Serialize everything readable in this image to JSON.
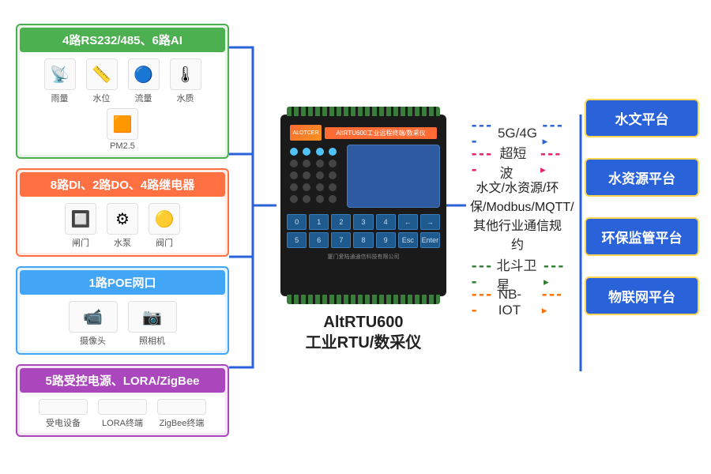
{
  "groups": [
    {
      "title": "4路RS232/485、6路AI",
      "border_color": "#4caf50",
      "header_bg": "#4caf50",
      "items": [
        {
          "label": "雨量",
          "glyph": "📡"
        },
        {
          "label": "水位",
          "glyph": "📏"
        },
        {
          "label": "流量",
          "glyph": "🔵"
        },
        {
          "label": "水质",
          "glyph": "🌡"
        },
        {
          "label": "PM2.5",
          "glyph": "🟧"
        }
      ]
    },
    {
      "title": "8路DI、2路DO、4路继电器",
      "border_color": "#ff7043",
      "header_bg": "#ff7043",
      "items": [
        {
          "label": "闸门",
          "glyph": "🔲"
        },
        {
          "label": "水泵",
          "glyph": "⚙"
        },
        {
          "label": "阀门",
          "glyph": "🟡"
        }
      ]
    },
    {
      "title": "1路POE网口",
      "border_color": "#42a5f5",
      "header_bg": "#42a5f5",
      "items": [
        {
          "label": "摄像头",
          "glyph": "📹",
          "wide": true
        },
        {
          "label": "照相机",
          "glyph": "📷",
          "wide": true
        }
      ]
    },
    {
      "title": "5路受控电源、LORA/ZigBee",
      "border_color": "#ab47bc",
      "header_bg": "#ab47bc",
      "items": [
        {
          "label": "受电设备",
          "text_only": true,
          "wide": true
        },
        {
          "label": "LORA终端",
          "text_only": true,
          "wide": true
        },
        {
          "label": "ZigBee终端",
          "text_only": true,
          "wide": true
        }
      ]
    }
  ],
  "center": {
    "device_model": "AltRTU600",
    "device_sub": "工业RTU/数采仪",
    "logo_text": "ALOTCER",
    "header_text": "AltRTU600工业远程终端/数采仪",
    "footer_text": "厦门爱陆通通信科技有限公司",
    "keys": [
      "0",
      "1",
      "2",
      "3",
      "4",
      "←",
      "→",
      "5",
      "6",
      "7",
      "8",
      "9",
      "Esc",
      "Enter"
    ]
  },
  "protocols": {
    "rows_top": [
      {
        "label": "5G/4G",
        "color_class": "c-blue"
      },
      {
        "label": "超短波",
        "color_class": "c-pink"
      }
    ],
    "middle_text": "水文/水资源/环保/Modbus/MQTT/其他行业通信规约",
    "rows_bottom": [
      {
        "label": "北斗卫星",
        "color_class": "c-green"
      },
      {
        "label": "NB-IOT",
        "color_class": "c-orange"
      }
    ]
  },
  "platforms": [
    "水文平台",
    "水资源平台",
    "环保监管平台",
    "物联网平台"
  ],
  "colors": {
    "wire_blue": "#2962d9",
    "platform_bg": "#2962d9",
    "platform_border": "#ffd54f"
  }
}
